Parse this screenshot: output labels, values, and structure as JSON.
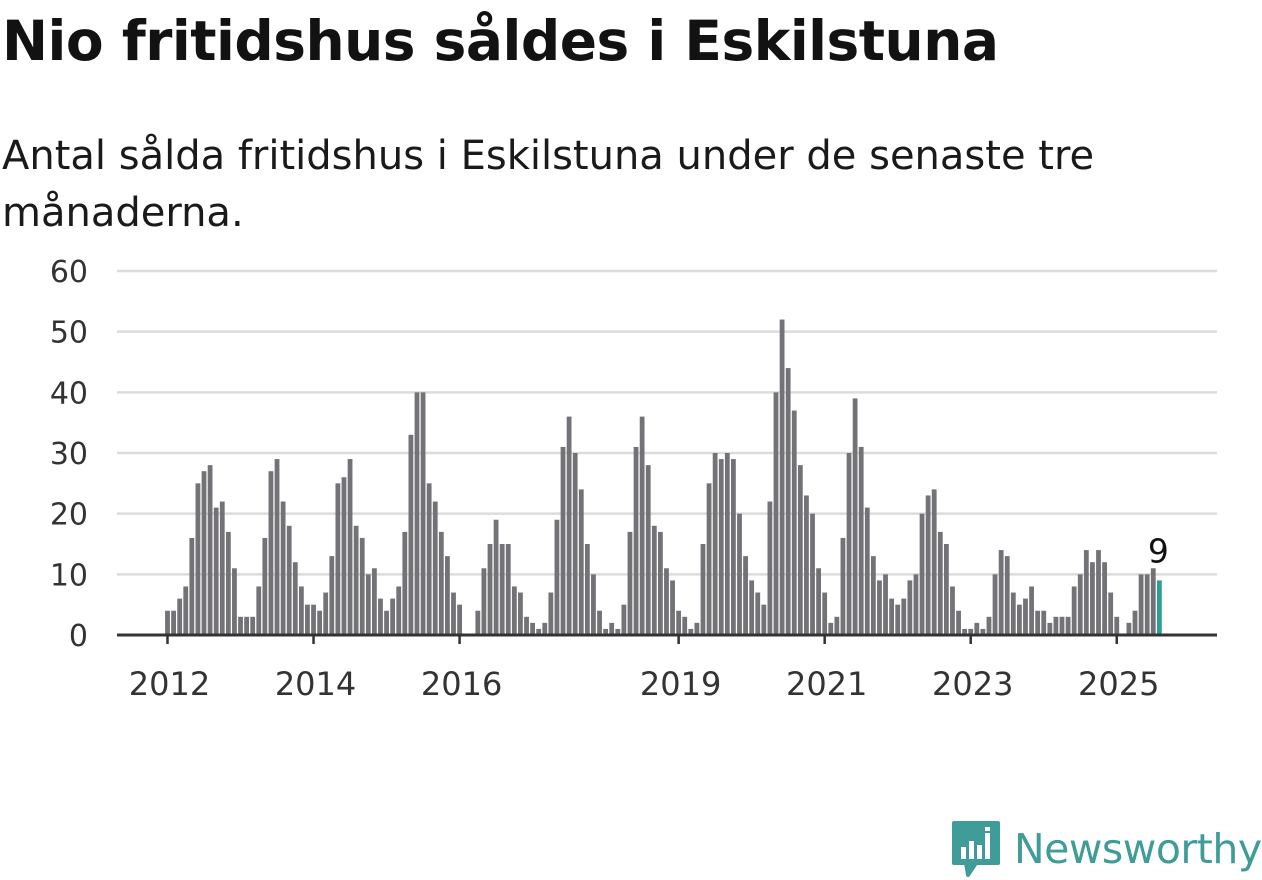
{
  "title": "Nio fritidshus såldes i Eskilstuna",
  "subtitle": "Antal sålda fritidshus i Eskilstuna under de senaste tre månaderna.",
  "brand": {
    "name": "Newsworthy",
    "icon": "bar-chart-speech-bubble-icon"
  },
  "colors": {
    "bar": "#737277",
    "highlight": "#2a9d96",
    "grid": "#dcdcdc",
    "axis": "#333333",
    "brand": "#3f9c98"
  },
  "chart_data": {
    "type": "bar",
    "title": "Nio fritidshus såldes i Eskilstuna",
    "subtitle": "Antal sålda fritidshus i Eskilstuna under de senaste tre månaderna.",
    "xlabel": "",
    "ylabel": "",
    "ylim": [
      0,
      60
    ],
    "yticks": [
      0,
      10,
      20,
      30,
      40,
      50,
      60
    ],
    "grid": true,
    "start_month": "2012-01",
    "x_tick_labels": [
      {
        "label": "2012",
        "month": "2012-01"
      },
      {
        "label": "2014",
        "month": "2014-01"
      },
      {
        "label": "2016",
        "month": "2016-01"
      },
      {
        "label": "2019",
        "month": "2019-01"
      },
      {
        "label": "2021",
        "month": "2021-01"
      },
      {
        "label": "2023",
        "month": "2023-01"
      },
      {
        "label": "2025",
        "month": "2025-01"
      }
    ],
    "values": [
      4,
      4,
      6,
      8,
      16,
      25,
      27,
      28,
      21,
      22,
      17,
      11,
      3,
      3,
      3,
      8,
      16,
      27,
      29,
      22,
      18,
      12,
      8,
      5,
      5,
      4,
      7,
      13,
      25,
      26,
      29,
      18,
      16,
      10,
      11,
      6,
      4,
      6,
      8,
      17,
      33,
      40,
      40,
      25,
      22,
      17,
      13,
      7,
      5,
      0,
      0,
      4,
      11,
      15,
      19,
      15,
      15,
      8,
      7,
      3,
      2,
      1,
      2,
      7,
      19,
      31,
      36,
      30,
      24,
      15,
      10,
      4,
      1,
      2,
      1,
      5,
      17,
      31,
      36,
      28,
      18,
      17,
      11,
      9,
      4,
      3,
      1,
      2,
      15,
      25,
      30,
      29,
      30,
      29,
      20,
      13,
      9,
      7,
      5,
      22,
      40,
      52,
      44,
      37,
      28,
      23,
      20,
      11,
      7,
      2,
      3,
      16,
      30,
      39,
      31,
      21,
      13,
      9,
      10,
      6,
      5,
      6,
      9,
      10,
      20,
      23,
      24,
      17,
      15,
      8,
      4,
      1,
      1,
      2,
      1,
      3,
      10,
      14,
      13,
      7,
      5,
      6,
      8,
      4,
      4,
      2,
      3,
      3,
      3,
      8,
      10,
      14,
      12,
      14,
      12,
      7,
      3,
      0,
      2,
      4,
      10,
      10,
      11,
      9
    ],
    "highlight_last": true,
    "annotation": {
      "text": "9"
    }
  }
}
